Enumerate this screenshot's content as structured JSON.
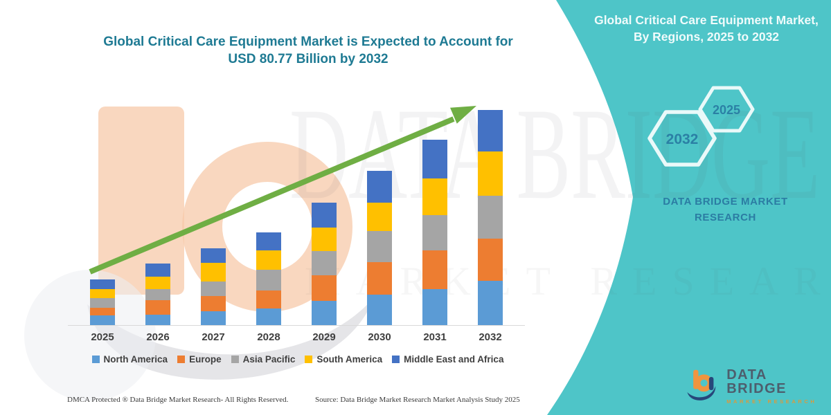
{
  "chart": {
    "title_line1": "Global Critical Care Equipment Market is Expected to Account for",
    "title_line2": "USD 80.77 Billion by 2032"
  },
  "chart_data": {
    "type": "bar",
    "stacked": true,
    "title": "Global Critical Care Equipment Market is Expected to Account for USD 80.77 Billion by 2032",
    "unit": "USD Billion",
    "categories": [
      "2025",
      "2026",
      "2027",
      "2028",
      "2029",
      "2030",
      "2031",
      "2032"
    ],
    "series": [
      {
        "name": "North America",
        "color": "#5B9BD5",
        "values": [
          3.6,
          3.9,
          5.2,
          6.2,
          9.2,
          11.5,
          13.6,
          16.65
        ]
      },
      {
        "name": "Europe",
        "color": "#ED7D31",
        "values": [
          2.8,
          5.4,
          5.8,
          6.7,
          9.6,
          12.1,
          14.4,
          15.79
        ]
      },
      {
        "name": "Asia Pacific",
        "color": "#A5A5A5",
        "values": [
          3.8,
          4.3,
          5.4,
          7.8,
          9.0,
          11.7,
          13.4,
          16.23
        ]
      },
      {
        "name": "South America",
        "color": "#FFC000",
        "values": [
          3.4,
          4.6,
          7.1,
          7.4,
          8.9,
          10.8,
          13.6,
          16.57
        ]
      },
      {
        "name": "Middle East and Africa",
        "color": "#4472C4",
        "values": [
          3.5,
          4.9,
          5.3,
          6.6,
          9.2,
          11.9,
          14.5,
          15.53
        ]
      }
    ],
    "totals": [
      17.1,
      23.1,
      28.8,
      34.7,
      45.9,
      58.0,
      69.5,
      80.77
    ],
    "ylim": [
      0,
      85
    ],
    "grid": false,
    "legend_position": "bottom",
    "annotation": "upward green trend arrow from 2025 to 2032"
  },
  "panel": {
    "title": "Global Critical Care Equipment Market, By Regions, 2025 to 2032",
    "hexagon_left": "2032",
    "hexagon_right": "2025",
    "brand": "DATA BRIDGE MARKET RESEARCH",
    "background_color": "#4EC5C8"
  },
  "logo": {
    "brand": "DATA BRIDGE",
    "tagline": "MARKET RESEARCH"
  },
  "watermark": {
    "line1": "DATA BRIDGE",
    "line2": "MARKET RESEARCH"
  },
  "footer": {
    "dmca": "DMCA Protected ® Data Bridge Market Research- All Rights Reserved.",
    "source": "Source: Data Bridge Market Research Market Analysis Study 2025"
  },
  "colors": {
    "accent_teal": "#4EC5C8",
    "title_text": "#1E7A93",
    "arrow_green": "#6FAE44",
    "axis_line": "#D9D9D9",
    "watermark_peach": "#F7C9A9"
  }
}
